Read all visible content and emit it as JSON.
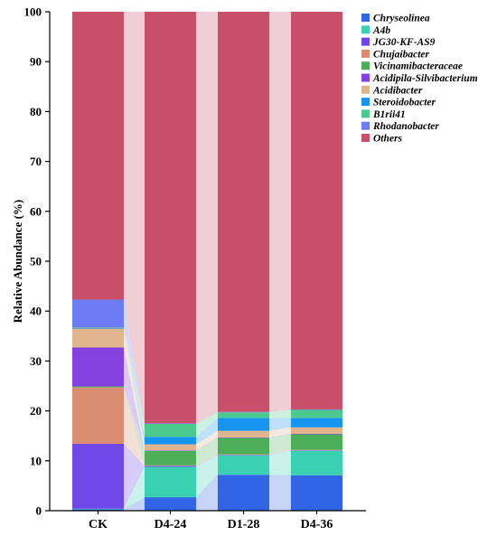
{
  "chart_data": {
    "type": "bar",
    "stacked": true,
    "categories": [
      "CK",
      "D4-24",
      "D1-28",
      "D4-36"
    ],
    "ylabel": "Relative Abundance (%)",
    "xlabel": "",
    "ylim": [
      0,
      100
    ],
    "yticks": [
      0,
      10,
      20,
      30,
      40,
      50,
      60,
      70,
      80,
      90,
      100
    ],
    "grid": false,
    "legend_position": "top-right",
    "flow_bands": true,
    "series": [
      {
        "name": "Chryseolinea",
        "color": "#3264e6",
        "values": [
          0.3,
          2.7,
          7.2,
          7.1
        ]
      },
      {
        "name": "A4b",
        "color": "#3ad1b2",
        "values": [
          0.1,
          6.1,
          3.9,
          4.9
        ]
      },
      {
        "name": "JG30-KF-AS9",
        "color": "#7048e8",
        "values": [
          13.0,
          0.2,
          0.1,
          0.1
        ]
      },
      {
        "name": "Chujaibacter",
        "color": "#d98c6f",
        "values": [
          11.3,
          0.1,
          0.1,
          0.1
        ]
      },
      {
        "name": "Vicinamibacteraceae",
        "color": "#4caf58",
        "values": [
          0.2,
          2.9,
          3.3,
          3.1
        ]
      },
      {
        "name": "Acidipila-Silvibacterium",
        "color": "#8540e0",
        "values": [
          7.8,
          0.1,
          0.1,
          0.1
        ]
      },
      {
        "name": "Acidibacter",
        "color": "#e0b48c",
        "values": [
          3.8,
          1.2,
          1.3,
          1.3
        ]
      },
      {
        "name": "Steroidobacter",
        "color": "#1793f0",
        "values": [
          0.1,
          1.5,
          2.6,
          1.9
        ]
      },
      {
        "name": "B1rii41",
        "color": "#4cc98c",
        "values": [
          0.1,
          2.6,
          1.1,
          1.6
        ]
      },
      {
        "name": "Rhodanobacter",
        "color": "#6b7cf5",
        "values": [
          5.6,
          0.1,
          0.1,
          0.1
        ]
      },
      {
        "name": "Others",
        "color": "#c9506a",
        "values": [
          57.7,
          82.5,
          80.2,
          79.7
        ]
      }
    ]
  }
}
